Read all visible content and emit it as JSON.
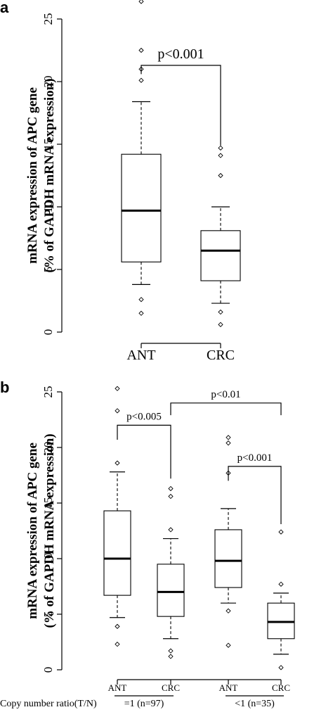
{
  "chart_data": [
    {
      "panel": "a",
      "type": "box",
      "ylabel_line1": "mRNA expression of APC gene",
      "ylabel_line2": "(% of GAPDH mRNA expression)",
      "ylim": [
        0,
        25
      ],
      "yticks": [
        0,
        5,
        10,
        15,
        20,
        25
      ],
      "categories": [
        "ANT",
        "CRC"
      ],
      "boxes": [
        {
          "name": "ANT",
          "q1": 5.6,
          "median": 9.7,
          "q3": 14.2,
          "whisker_low": 3.8,
          "whisker_high": 18.4,
          "outliers": [
            26.4,
            22.5,
            21.0,
            20.1,
            2.6,
            1.5
          ]
        },
        {
          "name": "CRC",
          "q1": 4.1,
          "median": 6.5,
          "q3": 8.1,
          "whisker_low": 2.3,
          "whisker_high": 10.0,
          "outliers": [
            14.7,
            14.1,
            12.5,
            1.6,
            0.6
          ]
        }
      ],
      "comparisons": [
        {
          "from": 0,
          "to": 1,
          "label": "p<0.001",
          "level": 21.3
        }
      ]
    },
    {
      "panel": "b",
      "type": "box",
      "ylabel_line1": "mRNA expression of APC gene",
      "ylabel_line2": "(% of GAPDH mRNA expression)",
      "ylim": [
        0,
        25
      ],
      "yticks": [
        0,
        5,
        10,
        15,
        20,
        25
      ],
      "categories": [
        "ANT",
        "CRC",
        "ANT",
        "CRC"
      ],
      "groups_label": "Copy number ratio(T/N)",
      "groups": [
        {
          "label": "=1 (n=97)",
          "from": 0,
          "to": 1
        },
        {
          "label": "<1 (n=35)",
          "from": 2,
          "to": 3
        }
      ],
      "boxes": [
        {
          "name": "ANT",
          "q1": 6.7,
          "median": 10.0,
          "q3": 14.3,
          "whisker_low": 4.7,
          "whisker_high": 17.8,
          "outliers": [
            25.3,
            23.3,
            18.6,
            3.9,
            2.3
          ]
        },
        {
          "name": "CRC",
          "q1": 4.8,
          "median": 7.0,
          "q3": 9.5,
          "whisker_low": 2.8,
          "whisker_high": 11.8,
          "outliers": [
            16.3,
            15.6,
            12.6,
            1.7,
            1.2
          ]
        },
        {
          "name": "ANT",
          "q1": 7.4,
          "median": 9.8,
          "q3": 12.6,
          "whisker_low": 6.0,
          "whisker_high": 14.5,
          "outliers": [
            20.9,
            20.4,
            17.7,
            5.3,
            2.2
          ]
        },
        {
          "name": "CRC",
          "q1": 2.8,
          "median": 4.3,
          "q3": 6.0,
          "whisker_low": 1.4,
          "whisker_high": 6.9,
          "outliers": [
            12.4,
            7.7,
            0.2
          ]
        }
      ],
      "comparisons": [
        {
          "from": 0,
          "to": 1,
          "label": "p<0.005",
          "level": 22.0,
          "end_low": 17.2
        },
        {
          "from": 1,
          "to": 3,
          "label": "p<0.01",
          "level": 24.0,
          "end_low": 22.9
        },
        {
          "from": 2,
          "to": 3,
          "label": "p<0.001",
          "level": 18.3,
          "end_low": 13.1
        }
      ]
    }
  ]
}
